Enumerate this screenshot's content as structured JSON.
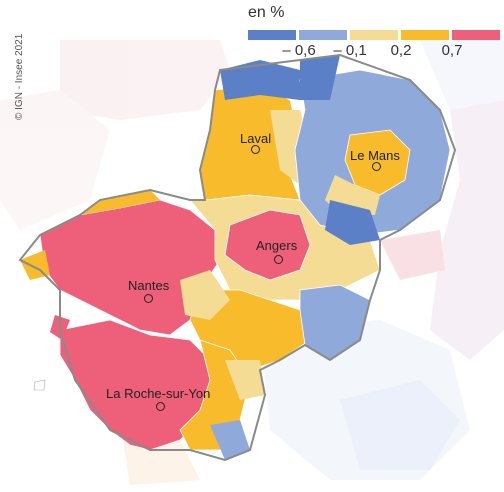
{
  "credit": "© IGN - Insee 2021",
  "legend": {
    "unit": "en %",
    "colors": [
      "#5b80c8",
      "#8fa9da",
      "#f4dc94",
      "#f8bb2c",
      "#ee6079"
    ],
    "thresholds": [
      "– 0,6",
      "– 0,1",
      "0,2",
      "0,7"
    ]
  },
  "cities": [
    {
      "name": "Laval"
    },
    {
      "name": "Le Mans"
    },
    {
      "name": "Angers"
    },
    {
      "name": "Nantes"
    },
    {
      "name": "La Roche-sur-Yon"
    }
  ],
  "colors": {
    "region_border": "#8a8a8a",
    "outside_light": "#ffffff",
    "sea": "#ffffff"
  }
}
